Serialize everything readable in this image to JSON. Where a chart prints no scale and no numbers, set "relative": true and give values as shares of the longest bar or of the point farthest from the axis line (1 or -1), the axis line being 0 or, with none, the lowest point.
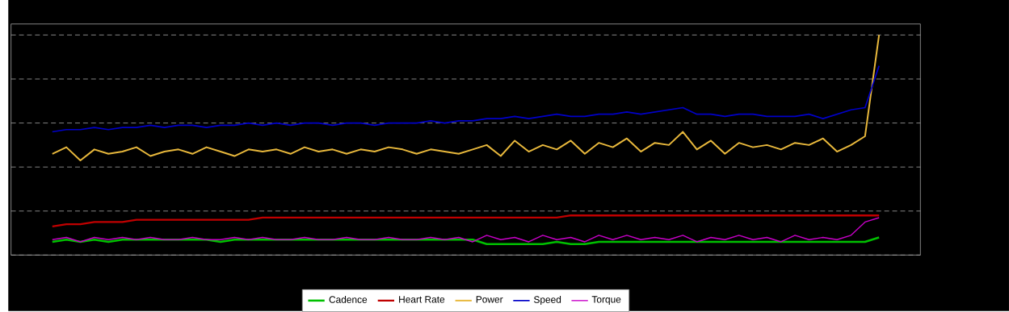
{
  "chart_data": {
    "type": "line",
    "relative": true,
    "grid": "y",
    "legend": "bottom",
    "marker": "none",
    "line_style": "solid",
    "categories": [
      null,
      null,
      null,
      null,
      null,
      null,
      null,
      null,
      null,
      null,
      null,
      null,
      null,
      null,
      null,
      null,
      null,
      null,
      null,
      null,
      null,
      null,
      null,
      null,
      null,
      null,
      null,
      null,
      null,
      null,
      null,
      null,
      null,
      null,
      null,
      null,
      null,
      null,
      null,
      null,
      null,
      null,
      null,
      null,
      null,
      null,
      null,
      null,
      null,
      null,
      null,
      null,
      null,
      null,
      null,
      null,
      null,
      null,
      null,
      null
    ],
    "series": [
      {
        "name": "Cadence",
        "color": "#00c000",
        "values": [
          0.06,
          0.07,
          0.06,
          0.07,
          0.06,
          0.07,
          0.07,
          0.07,
          0.07,
          0.07,
          0.07,
          0.07,
          0.06,
          0.07,
          0.07,
          0.07,
          0.07,
          0.07,
          0.07,
          0.07,
          0.07,
          0.07,
          0.07,
          0.07,
          0.07,
          0.07,
          0.07,
          0.07,
          0.07,
          0.07,
          0.07,
          0.05,
          0.05,
          0.05,
          0.05,
          0.05,
          0.06,
          0.05,
          0.05,
          0.06,
          0.06,
          0.06,
          0.06,
          0.06,
          0.06,
          0.06,
          0.06,
          0.06,
          0.06,
          0.06,
          0.06,
          0.06,
          0.06,
          0.06,
          0.06,
          0.06,
          0.06,
          0.06,
          0.06,
          0.08
        ]
      },
      {
        "name": "Heart Rate",
        "color": "#c00000",
        "values": [
          0.13,
          0.14,
          0.14,
          0.15,
          0.15,
          0.15,
          0.16,
          0.16,
          0.16,
          0.16,
          0.16,
          0.16,
          0.16,
          0.16,
          0.16,
          0.17,
          0.17,
          0.17,
          0.17,
          0.17,
          0.17,
          0.17,
          0.17,
          0.17,
          0.17,
          0.17,
          0.17,
          0.17,
          0.17,
          0.17,
          0.17,
          0.17,
          0.17,
          0.17,
          0.17,
          0.17,
          0.17,
          0.18,
          0.18,
          0.18,
          0.18,
          0.18,
          0.18,
          0.18,
          0.18,
          0.18,
          0.18,
          0.18,
          0.18,
          0.18,
          0.18,
          0.18,
          0.18,
          0.18,
          0.18,
          0.18,
          0.18,
          0.18,
          0.18,
          0.18
        ]
      },
      {
        "name": "Power",
        "color": "#e8b83c",
        "values": [
          0.46,
          0.49,
          0.43,
          0.48,
          0.46,
          0.47,
          0.49,
          0.45,
          0.47,
          0.48,
          0.46,
          0.49,
          0.47,
          0.45,
          0.48,
          0.47,
          0.48,
          0.46,
          0.49,
          0.47,
          0.48,
          0.46,
          0.48,
          0.47,
          0.49,
          0.48,
          0.46,
          0.48,
          0.47,
          0.46,
          0.48,
          0.5,
          0.45,
          0.52,
          0.47,
          0.5,
          0.48,
          0.52,
          0.46,
          0.51,
          0.49,
          0.53,
          0.47,
          0.51,
          0.5,
          0.56,
          0.48,
          0.52,
          0.46,
          0.51,
          0.49,
          0.5,
          0.48,
          0.51,
          0.5,
          0.53,
          0.47,
          0.5,
          0.54,
          1.0
        ]
      },
      {
        "name": "Speed",
        "color": "#0000c8",
        "values": [
          0.56,
          0.57,
          0.57,
          0.58,
          0.57,
          0.58,
          0.58,
          0.59,
          0.58,
          0.59,
          0.59,
          0.58,
          0.59,
          0.59,
          0.6,
          0.59,
          0.6,
          0.59,
          0.6,
          0.6,
          0.59,
          0.6,
          0.6,
          0.59,
          0.6,
          0.6,
          0.6,
          0.61,
          0.6,
          0.61,
          0.61,
          0.62,
          0.62,
          0.63,
          0.62,
          0.63,
          0.64,
          0.63,
          0.63,
          0.64,
          0.64,
          0.65,
          0.64,
          0.65,
          0.66,
          0.67,
          0.64,
          0.64,
          0.63,
          0.64,
          0.64,
          0.63,
          0.63,
          0.63,
          0.64,
          0.62,
          0.64,
          0.66,
          0.67,
          0.86
        ]
      },
      {
        "name": "Torque",
        "color": "#c800c8",
        "values": [
          0.07,
          0.08,
          0.06,
          0.08,
          0.07,
          0.08,
          0.07,
          0.08,
          0.07,
          0.07,
          0.08,
          0.07,
          0.07,
          0.08,
          0.07,
          0.08,
          0.07,
          0.07,
          0.08,
          0.07,
          0.07,
          0.08,
          0.07,
          0.07,
          0.08,
          0.07,
          0.07,
          0.08,
          0.07,
          0.08,
          0.06,
          0.09,
          0.07,
          0.08,
          0.06,
          0.09,
          0.07,
          0.08,
          0.06,
          0.09,
          0.07,
          0.09,
          0.07,
          0.08,
          0.07,
          0.09,
          0.06,
          0.08,
          0.07,
          0.09,
          0.07,
          0.08,
          0.06,
          0.09,
          0.07,
          0.08,
          0.07,
          0.09,
          0.15,
          0.17
        ]
      }
    ]
  }
}
